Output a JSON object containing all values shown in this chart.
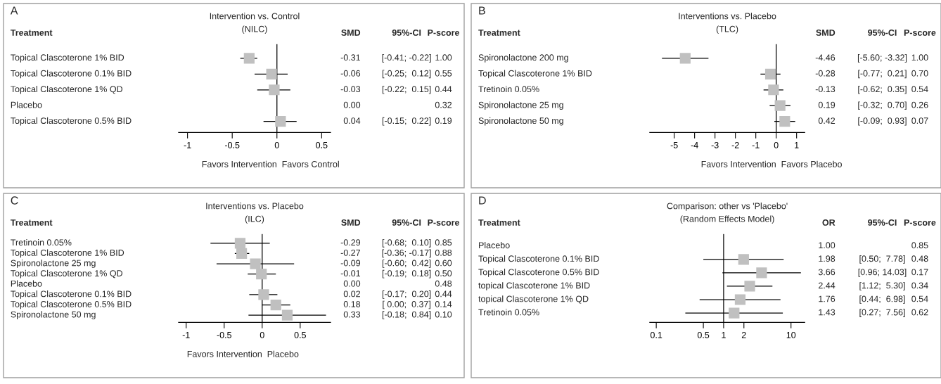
{
  "chart_data": [
    {
      "type": "scatter",
      "orientation": "horizontal",
      "marker": "square",
      "color": "#c0c0c0",
      "title": "Intervention vs. Control",
      "subtitle": "(NILC)",
      "categories": [
        "Topical Clascoterone 1% BID",
        "Topical Clascoterone 0.1% BID",
        "Topical Clascoterone 1% QD",
        "Placebo",
        "Topical Clascoterone 0.5% BID"
      ],
      "values": [
        -0.31,
        -0.06,
        -0.03,
        null,
        0.04
      ],
      "errors": [
        [
          -0.41,
          -0.22
        ],
        [
          -0.25,
          0.12
        ],
        [
          -0.22,
          0.15
        ],
        null,
        [
          -0.15,
          0.22
        ]
      ],
      "value_labels": [
        "-0.31",
        "-0.06",
        "-0.03",
        "0.00",
        "0.04"
      ],
      "annotations": [
        "A",
        "Treatment",
        "SMD",
        "95%-CI",
        "P-score",
        "[-0.41; -0.22]",
        "[-0.25;  0.12]",
        "[-0.22;  0.15]",
        null,
        "[-0.15;  0.22]",
        "1.00",
        "0.55",
        "0.44",
        "0.32",
        "0.19",
        "Favors Intervention",
        "Favors Control"
      ],
      "xlim": [
        -1.1,
        0.6
      ],
      "xticks": [
        -1,
        -0.5,
        0,
        0.5
      ],
      "ref_lines": [
        {
          "axis": "x",
          "value": 0
        }
      ]
    },
    {
      "type": "scatter",
      "orientation": "horizontal",
      "marker": "square",
      "color": "#c0c0c0",
      "title": "Interventions vs. Placebo",
      "subtitle": "(TLC)",
      "categories": [
        "Spironolactone 200 mg",
        "Topical Clascoterone 1% BID",
        "Tretinoin 0.05%",
        "Spironolactone 25 mg",
        "Spironolactone 50 mg"
      ],
      "values": [
        -4.46,
        -0.28,
        -0.13,
        0.19,
        0.42
      ],
      "errors": [
        [
          -5.6,
          -3.32
        ],
        [
          -0.77,
          0.21
        ],
        [
          -0.62,
          0.35
        ],
        [
          -0.32,
          0.7
        ],
        [
          -0.09,
          0.93
        ]
      ],
      "value_labels": [
        "-4.46",
        "-0.28",
        "-0.13",
        "0.19",
        "0.42"
      ],
      "annotations": [
        "B",
        "Treatment",
        "SMD",
        "95%-CI",
        "P-score",
        "[-5.60; -3.32]",
        "[-0.77;  0.21]",
        "[-0.62;  0.35]",
        "[-0.32;  0.70]",
        "[-0.09;  0.93]",
        "1.00",
        "0.70",
        "0.54",
        "0.26",
        "0.07",
        "Favors Intervention",
        "Favors Placebo"
      ],
      "xlim": [
        -6.2,
        1.4
      ],
      "xticks": [
        -5,
        -4,
        -3,
        -2,
        -1,
        0,
        1
      ],
      "ref_lines": [
        {
          "axis": "x",
          "value": 0
        }
      ]
    },
    {
      "type": "scatter",
      "orientation": "horizontal",
      "marker": "square",
      "color": "#c0c0c0",
      "title": "Interventions vs. Placebo",
      "subtitle": "(ILC)",
      "categories": [
        "Tretinoin 0.05%",
        "Topical Clascoterone 1% BID",
        "Spironolactone 25 mg",
        "Topical Clascoterone 1% QD",
        "Placebo",
        "Topical Clascoterone 0.1% BID",
        "Topical Clascoterone 0.5% BID",
        "Spironolactone 50 mg"
      ],
      "values": [
        -0.29,
        -0.27,
        -0.09,
        -0.01,
        null,
        0.02,
        0.18,
        0.33
      ],
      "errors": [
        [
          -0.68,
          0.1
        ],
        [
          -0.36,
          -0.17
        ],
        [
          -0.6,
          0.42
        ],
        [
          -0.19,
          0.18
        ],
        null,
        [
          -0.17,
          0.2
        ],
        [
          0.0,
          0.37
        ],
        [
          -0.18,
          0.84
        ]
      ],
      "value_labels": [
        "-0.29",
        "-0.27",
        "-0.09",
        "-0.01",
        "0.00",
        "0.02",
        "0.18",
        "0.33"
      ],
      "annotations": [
        "C",
        "Treatment",
        "SMD",
        "95%-CI",
        "P-score",
        "[-0.68;  0.10]",
        "[-0.36; -0.17]",
        "[-0.60;  0.42]",
        "[-0.19;  0.18]",
        null,
        "[-0.17;  0.20]",
        "[ 0.00;  0.37]",
        "[-0.18;  0.84]",
        "0.85",
        "0.88",
        "0.60",
        "0.50",
        "0.48",
        "0.44",
        "0.14",
        "0.10",
        "Favors Intervention",
        "Placebo"
      ],
      "xlim": [
        -1.1,
        0.9
      ],
      "xticks": [
        -1,
        -0.5,
        0,
        0.5
      ],
      "ref_lines": [
        {
          "axis": "x",
          "value": 0
        }
      ]
    },
    {
      "type": "scatter",
      "orientation": "horizontal",
      "marker": "square",
      "color": "#c0c0c0",
      "title": "Comparison: other vs 'Placebo'",
      "subtitle": "(Random Effects Model)",
      "log": "x",
      "categories": [
        "Placebo",
        "Topical Clascoterone 0.1% BID",
        "Topical Clascoterone 0.5% BID",
        "topical Clascoterone 1% BID",
        "topical Clascoterone 1% QD",
        "Tretinoin 0.05%"
      ],
      "values": [
        null,
        1.98,
        3.66,
        2.44,
        1.76,
        1.43
      ],
      "errors": [
        null,
        [
          0.5,
          7.78
        ],
        [
          0.96,
          14.03
        ],
        [
          1.12,
          5.3
        ],
        [
          0.44,
          6.98
        ],
        [
          0.27,
          7.56
        ]
      ],
      "value_labels": [
        "1.00",
        "1.98",
        "3.66",
        "2.44",
        "1.76",
        "1.43"
      ],
      "annotations": [
        "D",
        "Treatment",
        "OR",
        "95%-CI",
        "P-score",
        null,
        "[0.50;  7.78]",
        "[0.96; 14.03]",
        "[1.12;  5.30]",
        "[0.44;  6.98]",
        "[0.27;  7.56]",
        "0.85",
        "0.48",
        "0.17",
        "0.34",
        "0.54",
        "0.62"
      ],
      "xlim": [
        0.08,
        16
      ],
      "xticks": [
        0.1,
        0.5,
        1,
        2,
        10
      ],
      "ref_lines": [
        {
          "axis": "x",
          "value": 1
        }
      ]
    }
  ]
}
